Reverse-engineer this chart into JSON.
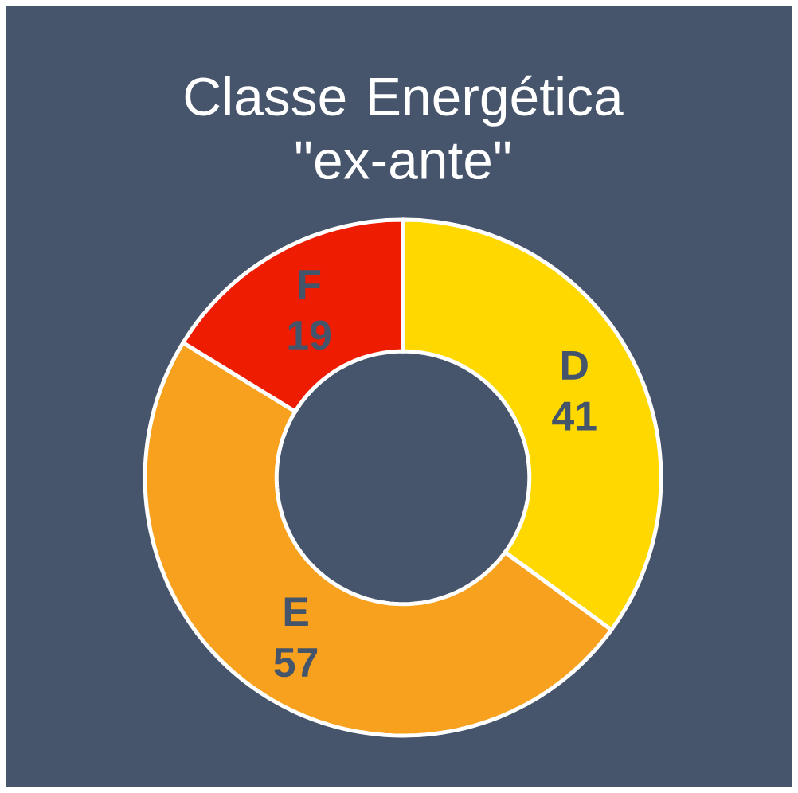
{
  "chart_data": {
    "type": "donut",
    "title": "Classe Energética \"ex-ante\"",
    "categories": [
      "D",
      "E",
      "F"
    ],
    "values": [
      41,
      57,
      19
    ],
    "colors": [
      "#ffd800",
      "#f8a11e",
      "#ee1c00"
    ],
    "data_labels": true
  }
}
